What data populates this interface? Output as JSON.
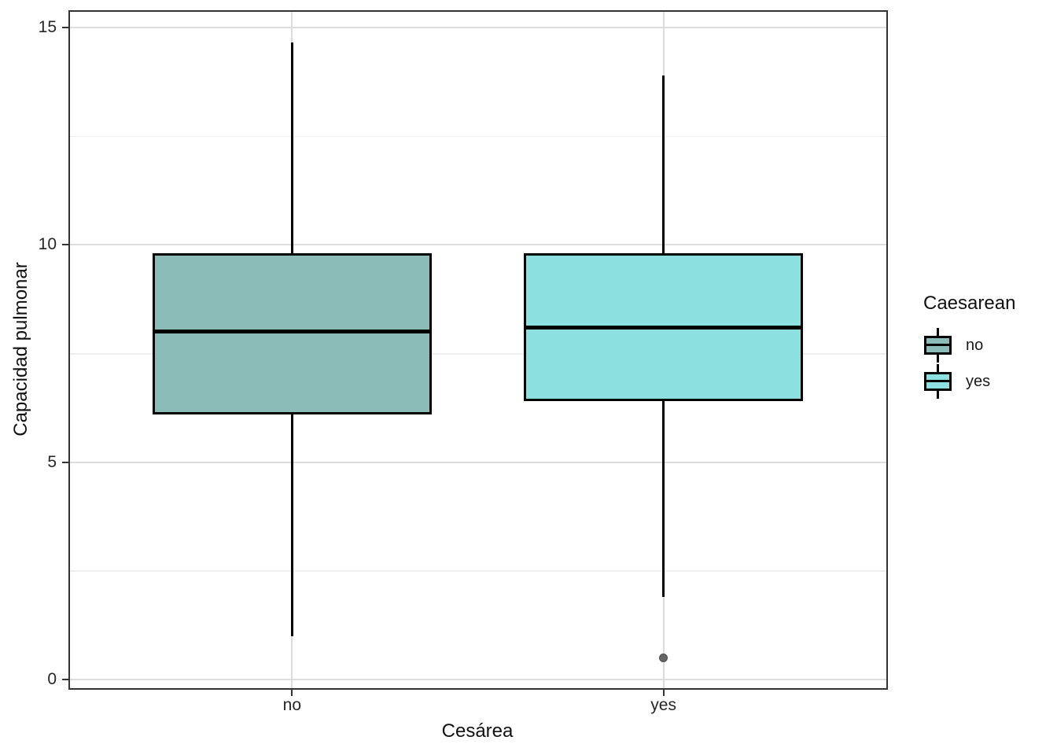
{
  "chart_data": {
    "type": "boxplot",
    "title": "",
    "xlabel": "Cesárea",
    "ylabel": "Capacidad pulmonar",
    "categories": [
      "no",
      "yes"
    ],
    "x_tick_labels": [
      "no",
      "yes"
    ],
    "y_ticks": [
      0,
      5,
      10,
      15
    ],
    "y_tick_labels": [
      "0",
      "5",
      "10",
      "15"
    ],
    "y_minor_gridlines": [
      2.5,
      7.5,
      12.5
    ],
    "ylim": [
      -0.2,
      15.4
    ],
    "grid": true,
    "legend": {
      "title": "Caesarean",
      "position": "right",
      "entries": [
        {
          "label": "no",
          "fill": "#8BBCB8"
        },
        {
          "label": "yes",
          "fill": "#8CE1E0"
        }
      ]
    },
    "series": [
      {
        "category": "no",
        "whisker_low": 1.0,
        "q1": 6.1,
        "median": 8.0,
        "q3": 9.8,
        "whisker_high": 14.65,
        "outliers": [],
        "fill": "#8BBCB8"
      },
      {
        "category": "yes",
        "whisker_low": 1.9,
        "q1": 6.4,
        "median": 8.1,
        "q3": 9.8,
        "whisker_high": 13.9,
        "outliers": [
          0.5
        ],
        "fill": "#8CE1E0"
      }
    ]
  },
  "colors": {
    "no_fill": "#8BBCB8",
    "yes_fill": "#8CE1E0",
    "box_stroke": "#000000",
    "median_stroke": "#000000",
    "major_grid": "#DCDCDC",
    "minor_grid": "#EFEFEF",
    "panel_border": "#333333",
    "tick_mark": "#333333",
    "axis_text": "#262626",
    "outlier_fill": "#666666",
    "outlier_stroke": "#4D4D4D"
  }
}
